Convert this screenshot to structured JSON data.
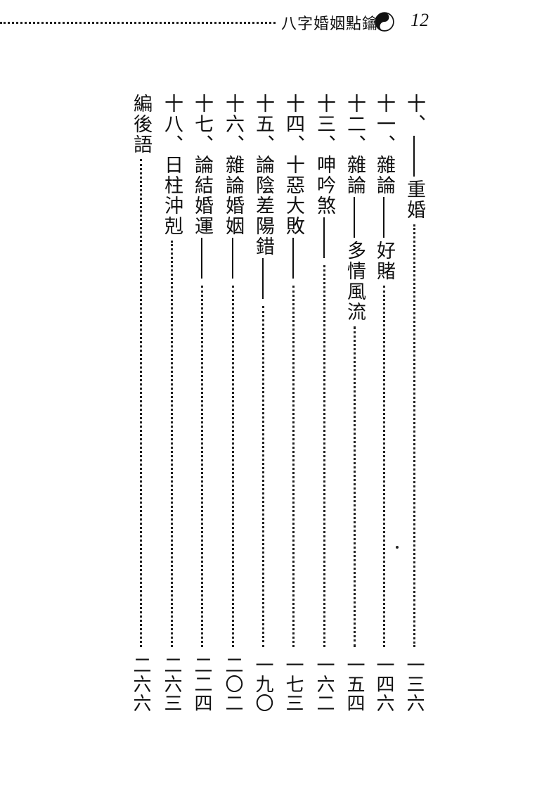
{
  "header": {
    "book_title": "八字婚姻點鑰",
    "page_number": "12",
    "icon": "yin-yang-icon"
  },
  "toc": [
    {
      "num": "十、",
      "text": "",
      "dash": true,
      "sub": "重婚",
      "page": "一三六"
    },
    {
      "num": "十一、",
      "text": "雜論",
      "dash": true,
      "sub": "好賭",
      "page": "一四六"
    },
    {
      "num": "十二、",
      "text": "雜論",
      "dash": true,
      "sub": "多情風流",
      "page": "一五四"
    },
    {
      "num": "十三、",
      "text": "呻吟煞",
      "dash": true,
      "sub": "",
      "page": "一六二"
    },
    {
      "num": "十四、",
      "text": "十惡大敗",
      "dash": true,
      "sub": "",
      "page": "一七三"
    },
    {
      "num": "十五、",
      "text": "論陰差陽錯",
      "dash": true,
      "sub": "",
      "page": "一九〇"
    },
    {
      "num": "十六、",
      "text": "雜論婚姻",
      "dash": true,
      "sub": "",
      "page": "二〇二"
    },
    {
      "num": "十七、",
      "text": "論結婚運",
      "dash": true,
      "sub": "",
      "page": "二二四"
    },
    {
      "num": "十八、",
      "text": "日柱沖剋",
      "dash": false,
      "sub": "",
      "page": "二六三"
    },
    {
      "num": "",
      "text": "編後語",
      "dash": false,
      "sub": "",
      "page": "二六六"
    }
  ]
}
